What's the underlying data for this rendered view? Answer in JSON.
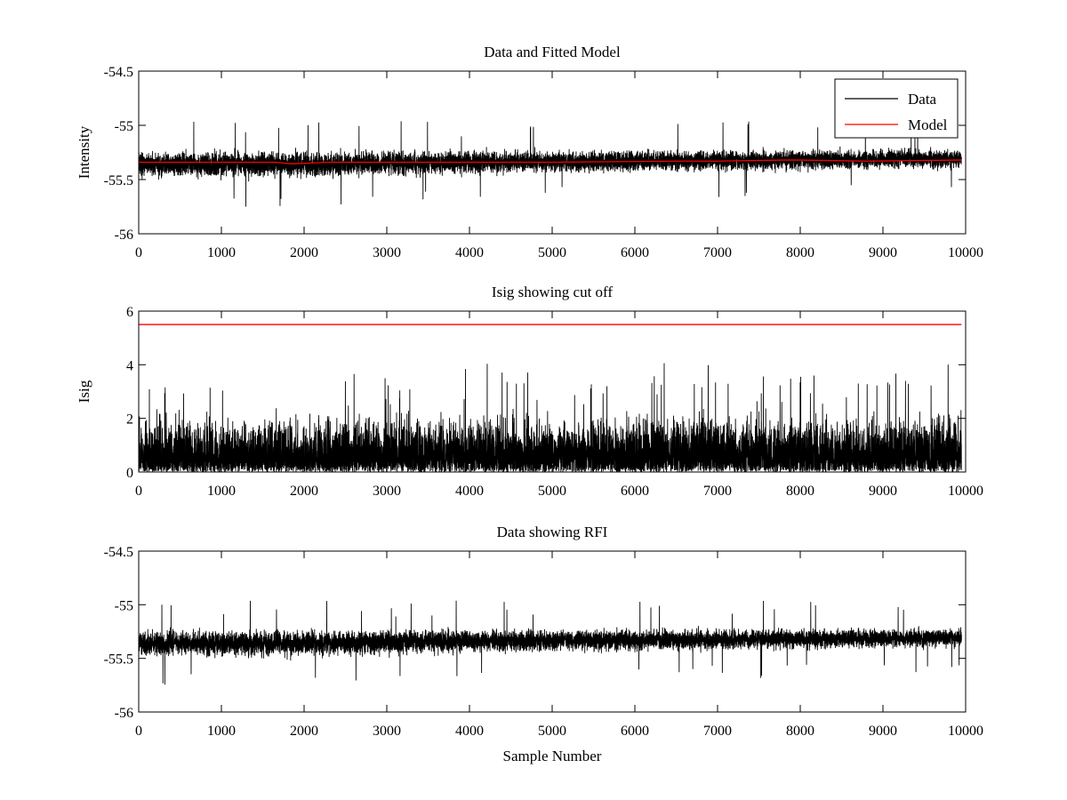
{
  "chart_data": [
    {
      "type": "line",
      "title": "Data and Fitted Model",
      "xlabel": "",
      "ylabel": "Intensity",
      "xlim": [
        0,
        10000
      ],
      "ylim": [
        -56,
        -54.5
      ],
      "xticks": [
        0,
        1000,
        2000,
        3000,
        4000,
        5000,
        6000,
        7000,
        8000,
        9000,
        10000
      ],
      "xtick_labels": [
        "0",
        "1000",
        "2000",
        "3000",
        "4000",
        "5000",
        "6000",
        "7000",
        "8000",
        "9000",
        "10000"
      ],
      "yticks": [
        -56,
        -55.5,
        -55,
        -54.5
      ],
      "ytick_labels": [
        "-56",
        "-55.5",
        "-55",
        "-54.5"
      ],
      "grid": false,
      "legend": {
        "position": "top-right",
        "entries": [
          "Data",
          "Model"
        ]
      },
      "series": [
        {
          "name": "Data",
          "color": "#000000",
          "kind": "noise",
          "x_range": [
            0,
            9950
          ],
          "n_points": 9950,
          "center_x": [
            0,
            2000,
            4000,
            6000,
            8000,
            9950
          ],
          "center_y": [
            -55.36,
            -55.36,
            -55.34,
            -55.33,
            -55.32,
            -55.31
          ],
          "band_low": -55.49,
          "band_high": -55.18,
          "extreme_low": -55.75,
          "extreme_high": -54.96
        },
        {
          "name": "Model",
          "color": "#ff0000",
          "kind": "line",
          "x": [
            0,
            1650,
            1850,
            2300,
            3000,
            5000,
            6500,
            7000,
            7800,
            8000,
            8800,
            9950
          ],
          "y": [
            -55.34,
            -55.34,
            -55.355,
            -55.34,
            -55.34,
            -55.34,
            -55.33,
            -55.33,
            -55.32,
            -55.32,
            -55.33,
            -55.32
          ]
        }
      ]
    },
    {
      "type": "line",
      "title": "Isig showing cut off",
      "xlabel": "",
      "ylabel": "Isig",
      "xlim": [
        0,
        10000
      ],
      "ylim": [
        0,
        6
      ],
      "xticks": [
        0,
        1000,
        2000,
        3000,
        4000,
        5000,
        6000,
        7000,
        8000,
        9000,
        10000
      ],
      "xtick_labels": [
        "0",
        "1000",
        "2000",
        "3000",
        "4000",
        "5000",
        "6000",
        "7000",
        "8000",
        "9000",
        "10000"
      ],
      "yticks": [
        0,
        2,
        4,
        6
      ],
      "ytick_labels": [
        "0",
        "2",
        "4",
        "6"
      ],
      "grid": false,
      "series": [
        {
          "color": "#000000",
          "kind": "abs-noise",
          "x_range": [
            0,
            9950
          ],
          "n_points": 9950,
          "typical_max": 1.6,
          "peak": 4.25
        },
        {
          "color": "#ff0000",
          "kind": "line",
          "x": [
            0,
            9950
          ],
          "y": [
            5.5,
            5.5
          ]
        }
      ]
    },
    {
      "type": "line",
      "title": "Data showing RFI",
      "xlabel": "Sample Number",
      "ylabel": "",
      "xlim": [
        0,
        10000
      ],
      "ylim": [
        -56,
        -54.5
      ],
      "xticks": [
        0,
        1000,
        2000,
        3000,
        4000,
        5000,
        6000,
        7000,
        8000,
        9000,
        10000
      ],
      "xtick_labels": [
        "0",
        "1000",
        "2000",
        "3000",
        "4000",
        "5000",
        "6000",
        "7000",
        "8000",
        "9000",
        "10000"
      ],
      "yticks": [
        -56,
        -55.5,
        -55,
        -54.5
      ],
      "ytick_labels": [
        "-56",
        "-55.5",
        "-55",
        "-54.5"
      ],
      "grid": false,
      "series": [
        {
          "color": "#000000",
          "kind": "noise",
          "x_range": [
            0,
            9950
          ],
          "n_points": 9950,
          "center_x": [
            0,
            2000,
            4000,
            6000,
            8000,
            9950
          ],
          "center_y": [
            -55.36,
            -55.36,
            -55.34,
            -55.33,
            -55.32,
            -55.31
          ],
          "band_low": -55.49,
          "band_high": -55.18,
          "extreme_low": -55.75,
          "extreme_high": -54.96
        }
      ]
    }
  ]
}
